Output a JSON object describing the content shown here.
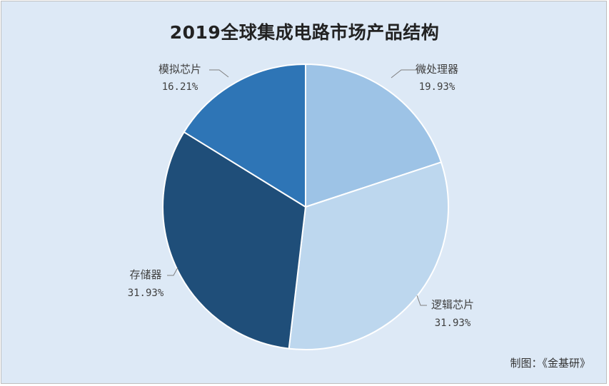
{
  "chart_data": {
    "type": "pie",
    "title": "2019全球集成电路市场产品结构",
    "slices": [
      {
        "label": "微处理器",
        "value": 19.93,
        "value_text": "19.93%",
        "color": "#9dc3e6"
      },
      {
        "label": "逻辑芯片",
        "value": 31.93,
        "value_text": "31.93%",
        "color": "#bdd7ee"
      },
      {
        "label": "存储器",
        "value": 31.93,
        "value_text": "31.93%",
        "color": "#1f4e79"
      },
      {
        "label": "模拟芯片",
        "value": 16.21,
        "value_text": "16.21%",
        "color": "#2e75b6"
      }
    ],
    "start_angle_deg": 0,
    "direction": "clockwise",
    "label_style": "outside-with-leader-lines"
  },
  "footer": {
    "credit": "制图：《金基研》"
  }
}
